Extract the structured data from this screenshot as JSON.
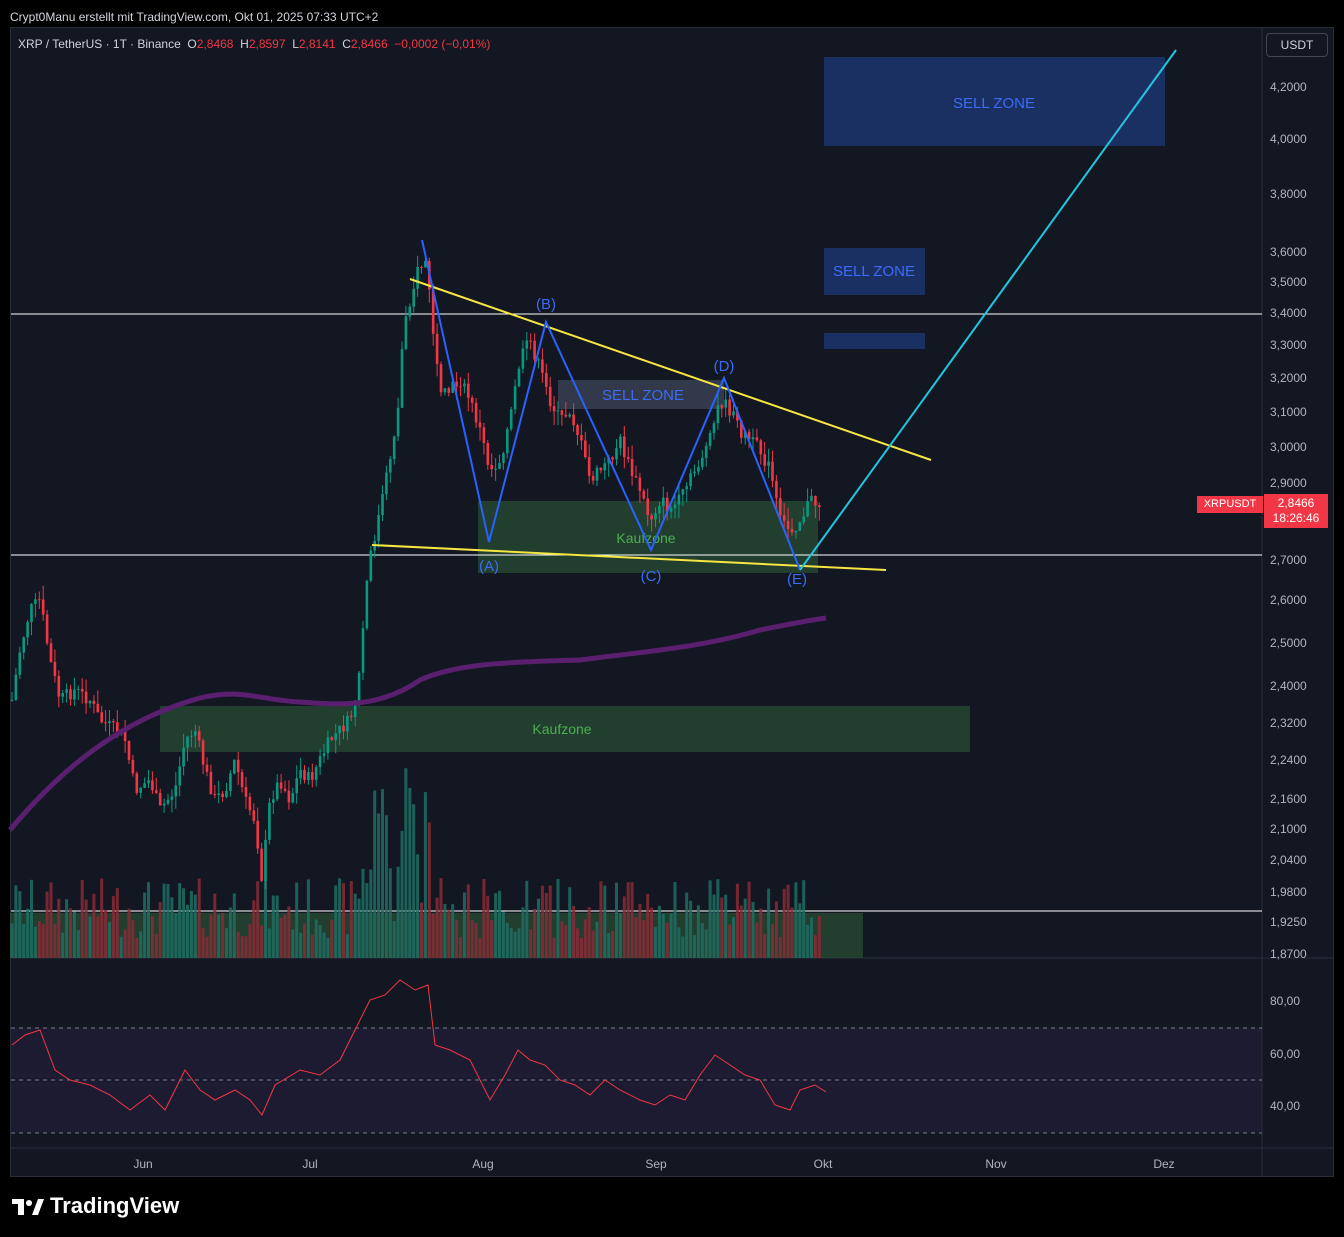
{
  "header": {
    "attribution": "Crypt0Manu erstellt mit TradingView.com, Okt 01, 2025 07:33 UTC+2"
  },
  "legend": {
    "symbol": "XRP / TetherUS · 1T · Binance",
    "o_label": "O",
    "o_value": "2,8468",
    "h_label": "H",
    "h_value": "2,8597",
    "l_label": "L",
    "l_value": "2,8141",
    "c_label": "C",
    "c_value": "2,8466",
    "change": "−0,0002 (−0,01%)"
  },
  "currency_button": "USDT",
  "price_axis": [
    "4,2000",
    "4,0000",
    "3,8000",
    "3,6000",
    "3,5000",
    "3,4000",
    "3,3000",
    "3,2000",
    "3,1000",
    "3,0000",
    "2,9000",
    "2,7000",
    "2,6000",
    "2,5000",
    "2,4000",
    "2,3200",
    "2,2400",
    "2,1600",
    "2,1000",
    "2,0400",
    "1,9800",
    "1,9250",
    "1,8700"
  ],
  "rsi_axis": [
    "80,00",
    "60,00",
    "40,00"
  ],
  "time_axis": [
    "Jun",
    "Jul",
    "Aug",
    "Sep",
    "Okt",
    "Nov",
    "Dez"
  ],
  "current_price": {
    "symbol": "XRPUSDT",
    "price": "2,8466",
    "countdown": "18:26:46"
  },
  "zones": {
    "sell_top": "SELL ZONE",
    "sell_mid": "SELL ZONE",
    "sell_inner": "SELL ZONE",
    "kauf_upper": "Kaufzone",
    "kauf_lower": "Kaufzone"
  },
  "waves": [
    "(A)",
    "(B)",
    "(C)",
    "(D)",
    "(E)"
  ],
  "brand": "TradingView",
  "colors": {
    "background": "#131722",
    "up": "#089981",
    "down": "#f23645",
    "sell_zone": "#1e3a7a",
    "kauf_zone": "#2e5e3a",
    "trend_yellow": "#f5e642",
    "projection": "#22c5e0",
    "ma": "#5a1f6e",
    "rsi": "#f23645"
  }
}
